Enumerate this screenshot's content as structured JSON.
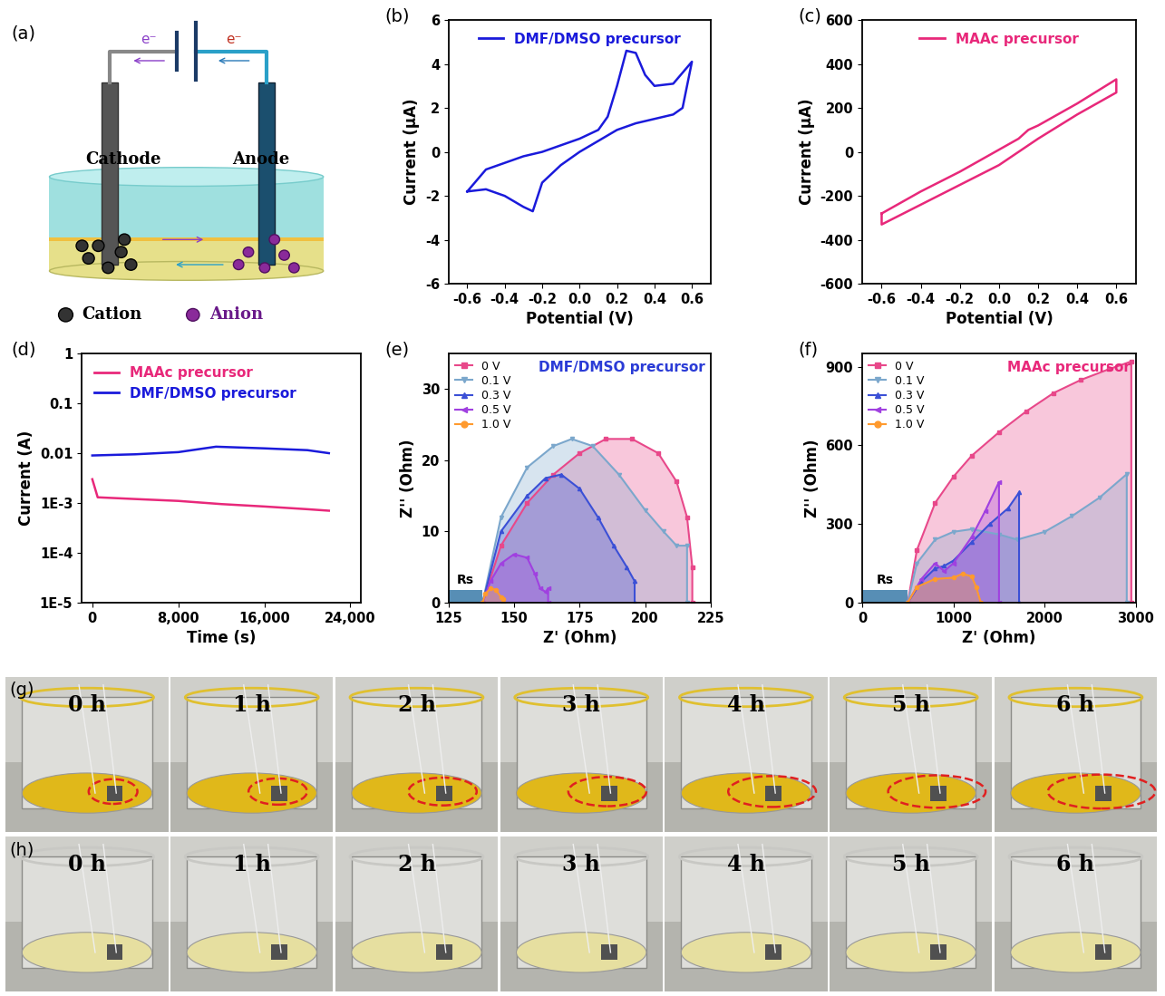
{
  "chart_data": [
    {
      "panel_label": "(b)",
      "type": "line",
      "x_label": "Potential (V)",
      "y_label": "Current (μA)",
      "xlim": [
        -0.7,
        0.7
      ],
      "xticks": [
        -0.6,
        -0.4,
        -0.2,
        0.0,
        0.2,
        0.4,
        0.6
      ],
      "ylim": [
        -6,
        6
      ],
      "yticks": [
        -6,
        -4,
        -2,
        0,
        2,
        4,
        6
      ],
      "legend": "upper center",
      "series": [
        {
          "name": "DMF/DMSO precursor",
          "color": "#1a1adb",
          "x": [
            -0.6,
            -0.5,
            -0.4,
            -0.3,
            -0.2,
            -0.1,
            0.0,
            0.1,
            0.15,
            0.2,
            0.25,
            0.3,
            0.35,
            0.4,
            0.5,
            0.6,
            0.55,
            0.5,
            0.4,
            0.3,
            0.2,
            0.1,
            0.0,
            -0.1,
            -0.2,
            -0.25,
            -0.3,
            -0.4,
            -0.5,
            -0.6
          ],
          "values": [
            -1.8,
            -0.8,
            -0.5,
            -0.2,
            0.0,
            0.3,
            0.6,
            1.0,
            1.6,
            3.0,
            4.6,
            4.5,
            3.5,
            3.0,
            3.1,
            4.1,
            2.0,
            1.7,
            1.5,
            1.3,
            1.0,
            0.5,
            0.0,
            -0.6,
            -1.4,
            -2.7,
            -2.5,
            -2.0,
            -1.7,
            -1.8
          ]
        }
      ]
    },
    {
      "panel_label": "(c)",
      "type": "line",
      "x_label": "Potential (V)",
      "y_label": "Current (μA)",
      "xlim": [
        -0.7,
        0.7
      ],
      "xticks": [
        -0.6,
        -0.4,
        -0.2,
        0.0,
        0.2,
        0.4,
        0.6
      ],
      "ylim": [
        -600,
        600
      ],
      "yticks": [
        -600,
        -400,
        -200,
        0,
        200,
        400,
        600
      ],
      "legend": "upper center",
      "series": [
        {
          "name": "MAAc precursor",
          "color": "#e8287a",
          "x": [
            -0.6,
            -0.4,
            -0.2,
            0.0,
            0.1,
            0.15,
            0.2,
            0.4,
            0.6,
            0.6,
            0.4,
            0.2,
            0.1,
            0.0,
            -0.2,
            -0.4,
            -0.6,
            -0.6
          ],
          "values": [
            -280,
            -180,
            -90,
            10,
            60,
            100,
            120,
            220,
            330,
            270,
            170,
            60,
            0,
            -60,
            -150,
            -240,
            -330,
            -280
          ]
        }
      ]
    },
    {
      "panel_label": "(d)",
      "type": "line",
      "x_label": "Time (s)",
      "y_label": "Current (A)",
      "log": "y",
      "xlim": [
        -1000,
        25000
      ],
      "xticks": [
        0,
        {
          "value": 8000,
          "label": "8,000"
        },
        {
          "value": 16000,
          "label": "16,000"
        },
        {
          "value": 24000,
          "label": "24,000"
        }
      ],
      "ylim": [
        1e-05,
        1
      ],
      "yticks": [
        {
          "value": 1e-05,
          "label": "1E-5"
        },
        {
          "value": 0.0001,
          "label": "1E-4"
        },
        {
          "value": 0.001,
          "label": "1E-3"
        },
        0.01,
        0.1,
        1
      ],
      "legend": "upper left",
      "series": [
        {
          "name": "MAAc precursor",
          "color": "#e8287a",
          "x": [
            0,
            500,
            4000,
            8000,
            12000,
            16000,
            20000,
            22000
          ],
          "values": [
            0.003,
            0.0013,
            0.0012,
            0.0011,
            0.00095,
            0.00085,
            0.00075,
            0.0007
          ]
        },
        {
          "name": "DMF/DMSO precursor",
          "color": "#1a1adb",
          "x": [
            0,
            4000,
            8000,
            11500,
            16000,
            20000,
            22000
          ],
          "values": [
            0.009,
            0.0095,
            0.0105,
            0.0135,
            0.0125,
            0.0115,
            0.01
          ]
        }
      ]
    },
    {
      "panel_label": "(e)",
      "type": "area",
      "x_label": "Z' (Ohm)",
      "y_label": "Z'' (Ohm)",
      "xlim": [
        125,
        225
      ],
      "xticks": [
        125,
        150,
        175,
        200,
        225
      ],
      "ylim": [
        0,
        35
      ],
      "yticks": [
        0,
        10,
        20,
        30
      ],
      "legend": "upper left",
      "annotation": {
        "text": "DMF/DMSO precursor",
        "color": "#2a3bd6"
      },
      "rs": {
        "label": "Rs",
        "value": 138
      },
      "series": [
        {
          "name": "0 V",
          "color": "#e8488a",
          "marker": "square",
          "x": [
            138,
            145,
            155,
            165,
            175,
            185,
            195,
            205,
            212,
            216,
            218,
            218
          ],
          "values": [
            0,
            8,
            14,
            18,
            21,
            23,
            23,
            21,
            17,
            12,
            5,
            0
          ]
        },
        {
          "name": "0.1 V",
          "color": "#7ba7cc",
          "marker": "triangle_down",
          "x": [
            138,
            145,
            155,
            165,
            172,
            180,
            190,
            200,
            207,
            212,
            216,
            216
          ],
          "values": [
            0,
            12,
            19,
            22,
            23,
            22,
            18,
            13,
            10,
            8,
            8,
            0
          ]
        },
        {
          "name": "0.3 V",
          "color": "#3b50d6",
          "marker": "triangle_up",
          "x": [
            138,
            145,
            155,
            162,
            168,
            175,
            182,
            188,
            193,
            196,
            196
          ],
          "values": [
            0,
            10,
            15,
            17.5,
            18,
            16,
            12,
            8,
            5,
            3,
            0
          ]
        },
        {
          "name": "0.5 V",
          "color": "#a040e0",
          "marker": "triangle_left",
          "x": [
            138,
            141,
            145,
            150,
            155,
            158,
            160,
            162,
            163,
            163
          ],
          "values": [
            0,
            3,
            5.5,
            6.8,
            6.3,
            4,
            2,
            1.5,
            2,
            0
          ]
        },
        {
          "name": "1.0 V",
          "color": "#ff9a2e",
          "marker": "circle",
          "x": [
            138,
            139,
            141,
            143,
            145,
            146,
            146
          ],
          "values": [
            0,
            1.2,
            2,
            1.8,
            0.8,
            0.5,
            0
          ]
        }
      ]
    },
    {
      "panel_label": "(f)",
      "type": "area",
      "x_label": "Z' (Ohm)",
      "y_label": "Z'' (Ohm)",
      "xlim": [
        0,
        3000
      ],
      "xticks": [
        0,
        1000,
        2000,
        3000
      ],
      "ylim": [
        0,
        950
      ],
      "yticks": [
        0,
        300,
        600,
        900
      ],
      "legend": "upper left",
      "annotation": {
        "text": "MAAc precursor",
        "color": "#e8287a"
      },
      "rs": {
        "label": "Rs",
        "value": 500
      },
      "series": [
        {
          "name": "0 V",
          "color": "#e8488a",
          "marker": "square",
          "x": [
            500,
            600,
            800,
            1000,
            1200,
            1500,
            1800,
            2100,
            2400,
            2700,
            2950,
            2950
          ],
          "values": [
            0,
            200,
            380,
            480,
            560,
            650,
            730,
            800,
            850,
            890,
            920,
            0
          ]
        },
        {
          "name": "0.1 V",
          "color": "#7ba7cc",
          "marker": "triangle_down",
          "x": [
            500,
            600,
            800,
            1000,
            1200,
            1500,
            1700,
            2000,
            2300,
            2600,
            2900,
            2900
          ],
          "values": [
            0,
            150,
            240,
            270,
            280,
            260,
            240,
            270,
            330,
            400,
            490,
            0
          ]
        },
        {
          "name": "0.3 V",
          "color": "#3b50d6",
          "marker": "triangle_up",
          "x": [
            500,
            650,
            800,
            900,
            1000,
            1200,
            1400,
            1600,
            1720,
            1720
          ],
          "values": [
            0,
            80,
            130,
            140,
            160,
            230,
            300,
            360,
            420,
            0
          ]
        },
        {
          "name": "0.5 V",
          "color": "#a040e0",
          "marker": "triangle_left",
          "x": [
            500,
            650,
            800,
            900,
            1000,
            1200,
            1350,
            1500,
            1500
          ],
          "values": [
            0,
            90,
            150,
            120,
            150,
            250,
            350,
            460,
            0
          ]
        },
        {
          "name": "1.0 V",
          "color": "#ff9a2e",
          "marker": "circle",
          "x": [
            500,
            600,
            800,
            1000,
            1100,
            1200,
            1250,
            1300
          ],
          "values": [
            0,
            60,
            90,
            95,
            110,
            100,
            60,
            0
          ]
        }
      ]
    }
  ],
  "diagram": {
    "panel_label": "(a)",
    "cathode": "Cathode",
    "anode": "Anode",
    "cation": "Cation",
    "anion": "Anion",
    "electrons": [
      "e⁻",
      "e⁻"
    ]
  },
  "photos": [
    {
      "panel_label": "(g)",
      "labels": [
        "0 h",
        "1 h",
        "2 h",
        "3 h",
        "4 h",
        "5 h",
        "6 h"
      ]
    },
    {
      "panel_label": "(h)",
      "labels": [
        "0 h",
        "1 h",
        "2 h",
        "3 h",
        "4 h",
        "5 h",
        "6 h"
      ]
    }
  ]
}
